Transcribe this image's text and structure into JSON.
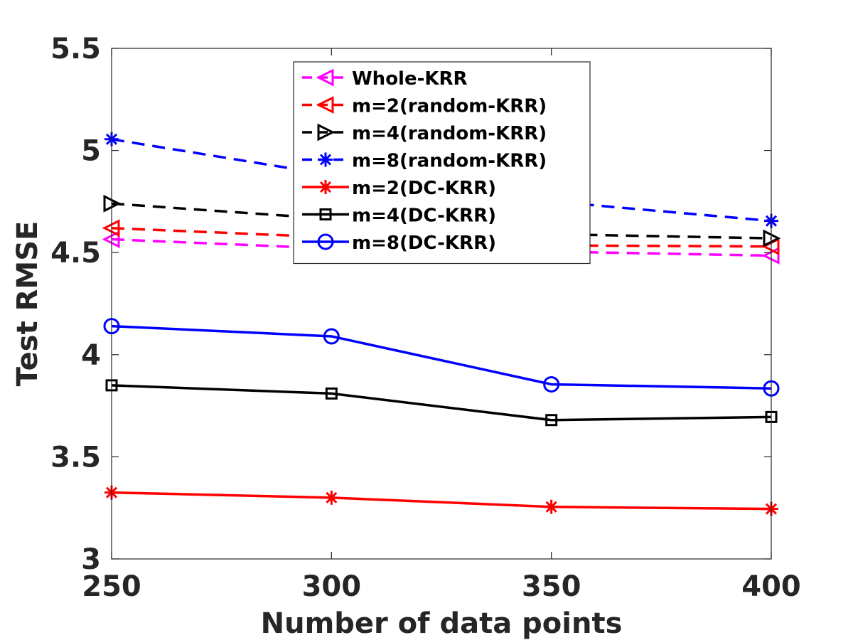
{
  "chart_data": {
    "type": "line",
    "xlabel": "Number of data points",
    "ylabel": "Test RMSE",
    "xlim": [
      250,
      400
    ],
    "ylim": [
      3,
      5.5
    ],
    "xticks": [
      250,
      300,
      350,
      400
    ],
    "yticks": [
      3,
      3.5,
      4,
      4.5,
      5,
      5.5
    ],
    "x_tick_labels": [
      "250",
      "300",
      "350",
      "400"
    ],
    "y_tick_labels": [
      "3",
      "3.5",
      "4",
      "4.5",
      "5",
      "5.5"
    ],
    "grid": false,
    "legend_position": "top-center",
    "x": [
      250,
      300,
      350,
      400
    ],
    "series": [
      {
        "name": "Whole-KRR",
        "values": [
          4.565,
          4.52,
          4.505,
          4.485
        ],
        "color": "#ff00ff",
        "dash": "dashed",
        "marker": "triangle-left"
      },
      {
        "name": "m=2(random-KRR)",
        "values": [
          4.62,
          4.575,
          4.535,
          4.53
        ],
        "color": "#ff0000",
        "dash": "dashed",
        "marker": "triangle-left"
      },
      {
        "name": "m=4(random-KRR)",
        "values": [
          4.74,
          4.665,
          4.59,
          4.57
        ],
        "color": "#000000",
        "dash": "dashed",
        "marker": "triangle-right"
      },
      {
        "name": "m=8(random-KRR)",
        "values": [
          5.055,
          4.88,
          4.75,
          4.655
        ],
        "color": "#0000ff",
        "dash": "dashed",
        "marker": "asterisk"
      },
      {
        "name": "m=2(DC-KRR)",
        "values": [
          3.325,
          3.3,
          3.255,
          3.245
        ],
        "color": "#ff0000",
        "dash": "solid",
        "marker": "asterisk"
      },
      {
        "name": "m=4(DC-KRR)",
        "values": [
          3.85,
          3.81,
          3.68,
          3.695
        ],
        "color": "#000000",
        "dash": "solid",
        "marker": "square"
      },
      {
        "name": "m=8(DC-KRR)",
        "values": [
          4.14,
          4.09,
          3.855,
          3.835
        ],
        "color": "#0000ff",
        "dash": "solid",
        "marker": "circle"
      }
    ]
  }
}
